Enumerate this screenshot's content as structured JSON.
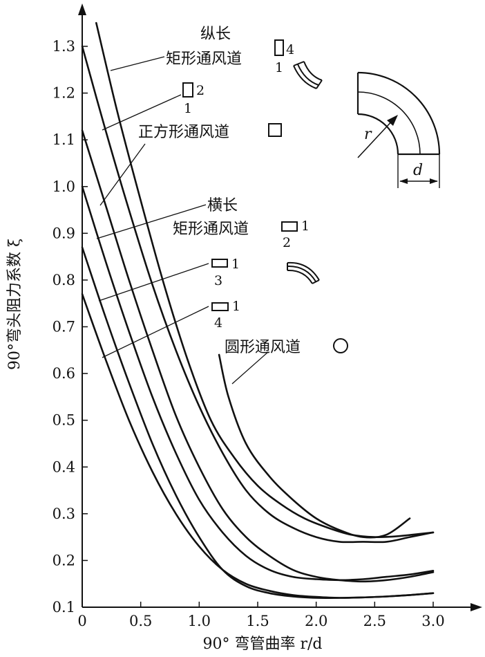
{
  "chart_data": {
    "type": "line",
    "title": "",
    "xlabel": "90° 弯管曲率 r/d",
    "ylabel": "90°弯头阻力系数 ξ",
    "xlim": [
      0,
      3.3
    ],
    "ylim": [
      0.1,
      1.38
    ],
    "x_ticks": [
      "0",
      "0.5",
      "1.0",
      "1.5",
      "2.0",
      "2.5",
      "3.0"
    ],
    "y_ticks": [
      "0.1",
      "0.2",
      "0.3",
      "0.4",
      "0.5",
      "0.6",
      "0.7",
      "0.8",
      "0.9",
      "1.0",
      "1.1",
      "1.2",
      "1.3"
    ],
    "grid": false,
    "series": [
      {
        "name": "纵长矩形通风道 4:1",
        "x": [
          0.12,
          0.3,
          0.5,
          0.7,
          0.9,
          1.1,
          1.3,
          1.5,
          1.7,
          1.9,
          2.1,
          2.3,
          2.5,
          2.7,
          3.0
        ],
        "y": [
          1.35,
          1.16,
          0.97,
          0.79,
          0.63,
          0.5,
          0.42,
          0.36,
          0.32,
          0.29,
          0.27,
          0.255,
          0.25,
          0.252,
          0.26
        ]
      },
      {
        "name": "纵长矩形通风道 2:1",
        "x": [
          0.0,
          0.2,
          0.4,
          0.6,
          0.8,
          1.0,
          1.2,
          1.4,
          1.6,
          1.8,
          2.0,
          2.2,
          2.4,
          2.6,
          2.8,
          3.0
        ],
        "y": [
          1.3,
          1.12,
          0.95,
          0.79,
          0.65,
          0.53,
          0.43,
          0.35,
          0.3,
          0.27,
          0.25,
          0.24,
          0.24,
          0.24,
          0.25,
          0.26
        ]
      },
      {
        "name": "正方形通风道",
        "x": [
          0.0,
          0.2,
          0.4,
          0.6,
          0.8,
          1.0,
          1.2,
          1.4,
          1.6,
          1.8,
          2.0,
          2.2,
          2.4,
          2.6,
          2.8,
          3.0
        ],
        "y": [
          1.12,
          0.96,
          0.8,
          0.65,
          0.51,
          0.4,
          0.31,
          0.25,
          0.21,
          0.18,
          0.165,
          0.158,
          0.155,
          0.158,
          0.165,
          0.175
        ]
      },
      {
        "name": "横长矩形通风道 1:2",
        "x": [
          0.0,
          0.2,
          0.4,
          0.6,
          0.8,
          1.0,
          1.2,
          1.4,
          1.6,
          1.8,
          2.0,
          2.2,
          2.4,
          2.6,
          2.8,
          3.0
        ],
        "y": [
          1.0,
          0.84,
          0.69,
          0.55,
          0.43,
          0.33,
          0.26,
          0.21,
          0.18,
          0.165,
          0.16,
          0.158,
          0.16,
          0.165,
          0.17,
          0.178
        ]
      },
      {
        "name": "横长矩形通风道 1:3",
        "x": [
          0.0,
          0.2,
          0.4,
          0.6,
          0.8,
          1.0,
          1.2,
          1.4,
          1.6,
          1.8,
          2.0,
          2.2,
          2.4,
          2.6,
          2.8,
          3.0
        ],
        "y": [
          0.87,
          0.72,
          0.58,
          0.45,
          0.34,
          0.25,
          0.18,
          0.145,
          0.13,
          0.123,
          0.12,
          0.12,
          0.121,
          0.123,
          0.126,
          0.13
        ]
      },
      {
        "name": "横长矩形通风道 1:4",
        "x": [
          0.0,
          0.2,
          0.4,
          0.6,
          0.8,
          1.0,
          1.2,
          1.4,
          1.6,
          1.8,
          2.0,
          2.2,
          2.4,
          2.6,
          2.8,
          3.0
        ],
        "y": [
          0.77,
          0.63,
          0.5,
          0.39,
          0.3,
          0.23,
          0.18,
          0.15,
          0.135,
          0.126,
          0.122,
          0.12,
          0.121,
          0.123,
          0.126,
          0.13
        ]
      },
      {
        "name": "圆形通风道",
        "x": [
          1.17,
          1.25,
          1.4,
          1.6,
          1.8,
          2.0,
          2.2,
          2.4,
          2.6,
          2.8
        ],
        "y": [
          0.64,
          0.55,
          0.45,
          0.38,
          0.33,
          0.29,
          0.265,
          0.25,
          0.255,
          0.29
        ]
      }
    ],
    "annotations": {
      "ratio_4_1": {
        "top": "4",
        "bottom": "1"
      },
      "ratio_2_1": {
        "top": "2",
        "bottom": "1"
      },
      "ratio_1_2": {
        "top": "1",
        "bottom": "2"
      },
      "ratio_1_3": {
        "top": "1",
        "bottom": "3"
      },
      "ratio_1_4": {
        "top": "1",
        "bottom": "4"
      },
      "zongchang": "纵长",
      "juxing": "矩形通风道",
      "zhengfang": "正方形通风道",
      "hengchang": "横长",
      "juxing2": "矩形通风道",
      "yuanxing": "圆形通风道",
      "diagram_r": "r",
      "diagram_d": "d"
    },
    "colors": {
      "line": "#111111"
    }
  }
}
